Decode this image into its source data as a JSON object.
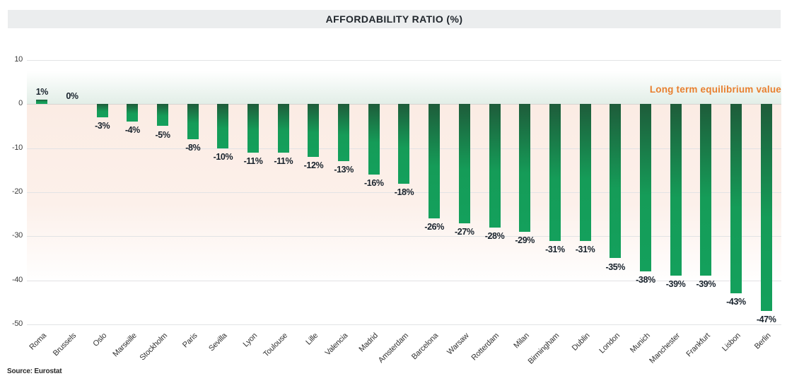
{
  "header": {
    "title": "AFFORDABILITY RATIO (%)"
  },
  "annotation": {
    "label": "Long term equilibrium value",
    "color": "#e87f2f"
  },
  "footer": {
    "source": "Source: Eurostat"
  },
  "colors": {
    "bar_top": "#1e5c3a",
    "bar_bottom": "#14a05c",
    "band_positive": "#e2eee7",
    "band_negative": "#fbece4",
    "title_bar_bg": "#ebedee",
    "gridline": "#e2e3e5"
  },
  "chart_data": {
    "type": "bar",
    "title": "AFFORDABILITY RATIO (%)",
    "categories": [
      "Roma",
      "Brussels",
      "Oslo",
      "Marseille",
      "Stockholm",
      "Paris",
      "Sevilla",
      "Lyon",
      "Toulouse",
      "Lille",
      "Valencia",
      "Madrid",
      "Amsterdam",
      "Barcelona",
      "Warsaw",
      "Rotterdam",
      "Milan",
      "Birmingham",
      "Dublin",
      "London",
      "Munich",
      "Manchester",
      "Frankfurt",
      "Lisbon",
      "Berlin"
    ],
    "values": [
      1,
      0,
      -3,
      -4,
      -5,
      -8,
      -10,
      -11,
      -11,
      -12,
      -13,
      -16,
      -18,
      -26,
      -27,
      -28,
      -29,
      -31,
      -31,
      -35,
      -38,
      -39,
      -39,
      -43,
      -47
    ],
    "labels": [
      "1%",
      "0%",
      "-3%",
      "-4%",
      "-5%",
      "-8%",
      "-10%",
      "-11%",
      "-11%",
      "-12%",
      "-13%",
      "-16%",
      "-18%",
      "-26%",
      "-27%",
      "-28%",
      "-29%",
      "-31%",
      "-31%",
      "-35%",
      "-38%",
      "-39%",
      "-39%",
      "-43%",
      "-47%"
    ],
    "xlabel": "",
    "ylabel": "",
    "ylim": [
      -50,
      10
    ],
    "yticks": [
      10,
      0,
      -10,
      -20,
      -30,
      -40,
      -50
    ],
    "grid": true,
    "legend_position": "none",
    "annotation": "Long term equilibrium value"
  }
}
